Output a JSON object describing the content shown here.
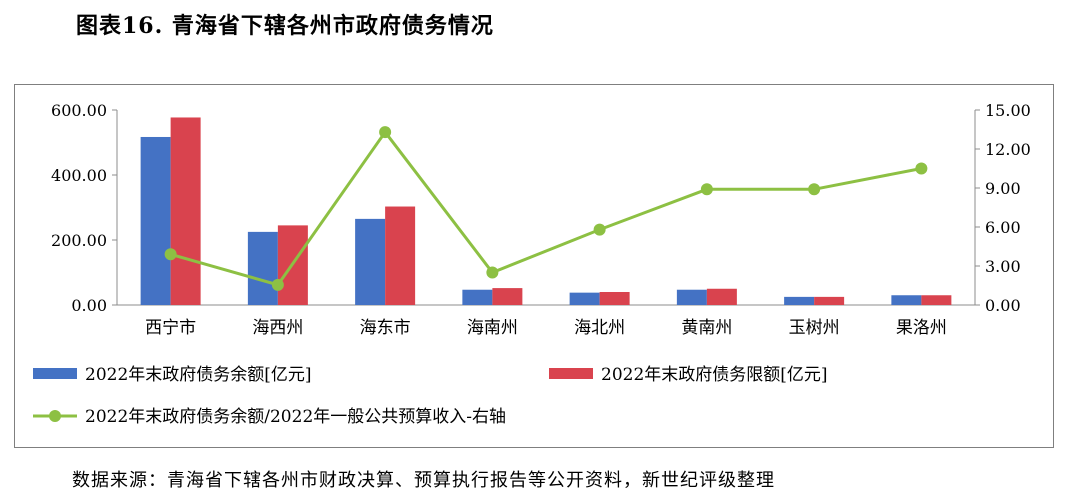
{
  "figure_title": "图表16. 青海省下辖各州市政府债务情况",
  "source_note": "数据来源：青海省下辖各州市财政决算、预算执行报告等公开资料，新世纪评级整理",
  "colors": {
    "bar1": "#4472c4",
    "bar2": "#d9434e",
    "line": "#8dc043"
  },
  "chart_data": {
    "type": "bar+line",
    "categories": [
      "西宁市",
      "海西州",
      "海东市",
      "海南州",
      "海北州",
      "黄南州",
      "玉树州",
      "果洛州"
    ],
    "series": [
      {
        "name": "2022年末政府债务余额[亿元]",
        "type": "bar",
        "axis": "left",
        "values": [
          517,
          225,
          265,
          47,
          38,
          47,
          25,
          30
        ]
      },
      {
        "name": "2022年末政府债务限额[亿元]",
        "type": "bar",
        "axis": "left",
        "values": [
          577,
          245,
          303,
          52,
          40,
          50,
          25,
          30
        ]
      },
      {
        "name": "2022年末政府债务余额/2022年一般公共预算收入-右轴",
        "type": "line",
        "axis": "right",
        "values": [
          3.9,
          1.55,
          13.3,
          2.5,
          5.8,
          8.9,
          8.9,
          10.5
        ]
      }
    ],
    "left_axis": {
      "min": 0,
      "max": 600,
      "ticks": [
        "0.00",
        "200.00",
        "400.00",
        "600.00"
      ]
    },
    "right_axis": {
      "min": 0,
      "max": 15,
      "ticks": [
        "0.00",
        "3.00",
        "6.00",
        "9.00",
        "12.00",
        "15.00"
      ]
    },
    "grid": false,
    "legend": "bottom"
  }
}
